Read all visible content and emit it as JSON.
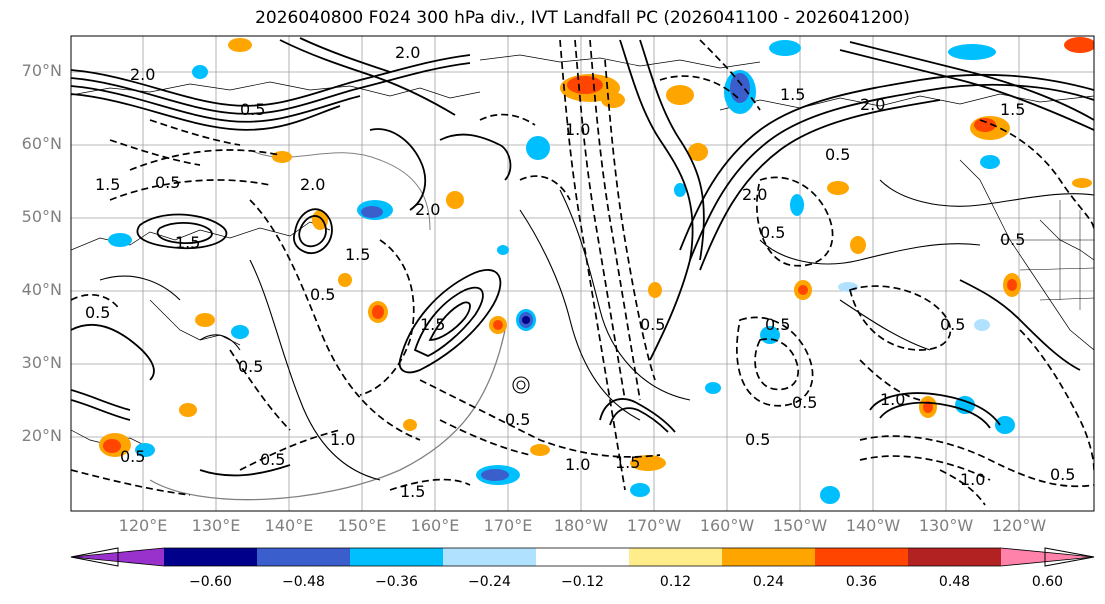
{
  "title": "2026040800 F024 300 hPa div., IVT Landfall PC (2026041100 - 2026041200)",
  "lat_labels": [
    "70°N",
    "60°N",
    "50°N",
    "40°N",
    "30°N",
    "20°N"
  ],
  "lon_labels": [
    "120°E",
    "130°E",
    "140°E",
    "150°E",
    "160°E",
    "170°E",
    "180°W",
    "170°W",
    "160°W",
    "150°W",
    "140°W",
    "130°W",
    "120°W"
  ],
  "colorbar": {
    "colors": [
      "#9932cc",
      "#00008b",
      "#3a5fcd",
      "#00bfff",
      "#b0e2ff",
      "#ffffff",
      "#ffec8b",
      "#ffa500",
      "#ff4500",
      "#b22222",
      "#ff82ab"
    ],
    "tick_labels": [
      "−0.60",
      "−0.48",
      "−0.36",
      "−0.24",
      "−0.12",
      "0.12",
      "0.24",
      "0.36",
      "0.48",
      "0.60"
    ]
  },
  "contour_labels": [
    "0.5",
    "1.0",
    "1.5",
    "2.0"
  ]
}
